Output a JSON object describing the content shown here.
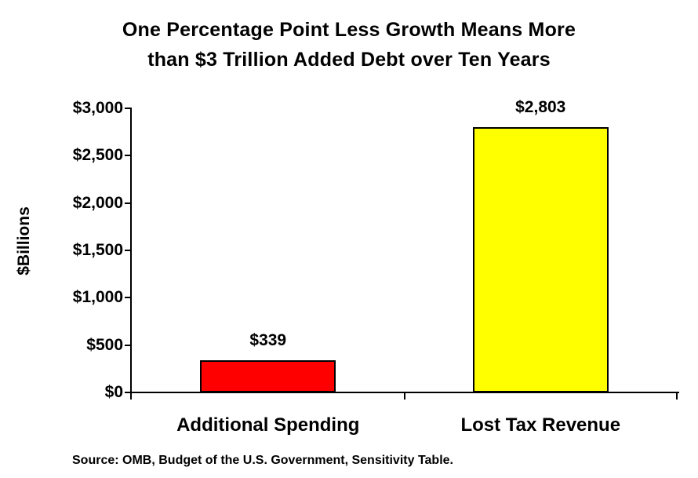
{
  "title": {
    "line1": "One Percentage Point Less Growth Means More",
    "line2": "than $3 Trillion Added Debt over Ten Years"
  },
  "y_axis": {
    "label": "$Billions",
    "ticks": [
      "$3,000",
      "$2,500",
      "$2,000",
      "$1,500",
      "$1,000",
      "$500",
      "$0"
    ]
  },
  "source": "Source: OMB, Budget of the U.S. Government, Sensitivity Table.",
  "colors": {
    "bar_additional_spending": "#FF0000",
    "bar_lost_tax_revenue": "#FFFF00",
    "axis": "#000000",
    "text": "#000000",
    "background": "#FFFFFF"
  },
  "chart_data": {
    "type": "bar",
    "title": "One Percentage Point Less Growth Means More than $3 Trillion Added Debt over Ten Years",
    "categories": [
      "Additional Spending",
      "Lost Tax Revenue"
    ],
    "values": [
      339,
      2803
    ],
    "value_labels": [
      "$339",
      "$2,803"
    ],
    "bar_colors": [
      "#FF0000",
      "#FFFF00"
    ],
    "xlabel": "",
    "ylabel": "$Billions",
    "ylim": [
      0,
      3000
    ],
    "ytick_interval": 500,
    "grid": false,
    "legend": false,
    "source_note": "Source: OMB, Budget of the U.S. Government, Sensitivity Table."
  }
}
